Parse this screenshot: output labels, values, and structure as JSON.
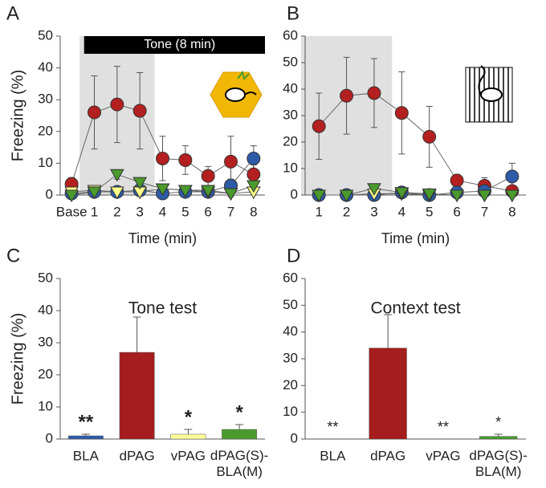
{
  "chart_data": [
    {
      "type": "line",
      "panel": "A",
      "x_label": "Time (min)",
      "y_label": "Freezing (%)",
      "annotation": "Tone (8 min)",
      "categories": [
        "Base",
        "1",
        "2",
        "3",
        "4",
        "5",
        "6",
        "7",
        "8"
      ],
      "ylim": [
        0,
        50
      ],
      "yticks": [
        0,
        10,
        20,
        30,
        40,
        50
      ],
      "series": [
        {
          "color": "#b3201f",
          "marker": "circle",
          "values": [
            3.5,
            26,
            28.5,
            26.5,
            11.5,
            11,
            6,
            10.5,
            6.5
          ],
          "errors": [
            2,
            11.5,
            12,
            12,
            7,
            4.5,
            3,
            8,
            3
          ]
        },
        {
          "color": "#2e5ba8",
          "marker": "circle",
          "values": [
            0.5,
            1,
            1,
            1.5,
            0.5,
            1,
            1,
            3,
            11.5
          ],
          "errors": [
            0.5,
            1,
            1,
            1,
            0.5,
            1,
            1,
            2,
            4
          ]
        },
        {
          "color": "#ffff88",
          "marker": "triangle",
          "values": [
            1,
            1.5,
            1,
            1,
            2,
            1.5,
            1,
            0.5,
            1
          ],
          "errors": [
            0.5,
            1,
            0.5,
            0.5,
            1,
            0.5,
            0.5,
            0.5,
            0.5
          ]
        },
        {
          "color": "#4a9a2c",
          "marker": "triangle",
          "values": [
            0,
            1,
            6.5,
            4,
            2,
            1.5,
            1.5,
            0.5,
            3
          ],
          "errors": [
            0.5,
            1,
            1.5,
            1,
            1,
            1,
            1,
            1,
            1
          ]
        }
      ]
    },
    {
      "type": "line",
      "panel": "B",
      "x_label": "Time (min)",
      "categories": [
        "1",
        "2",
        "3",
        "4",
        "5",
        "6",
        "7",
        "8"
      ],
      "ylim": [
        0,
        60
      ],
      "yticks": [
        0,
        10,
        20,
        30,
        40,
        50,
        60
      ],
      "series": [
        {
          "color": "#b3201f",
          "marker": "circle",
          "values": [
            26,
            37.5,
            38.5,
            31,
            22,
            5.5,
            3.5,
            1.5
          ],
          "errors": [
            12.5,
            14.5,
            13,
            15.5,
            11.5,
            2,
            3,
            1
          ]
        },
        {
          "color": "#2e5ba8",
          "marker": "circle",
          "values": [
            0,
            0,
            0,
            1,
            0,
            1,
            1.5,
            7
          ],
          "errors": [
            0,
            0,
            0,
            0.5,
            0,
            0.5,
            1,
            5
          ]
        },
        {
          "color": "#ffff88",
          "marker": "triangle",
          "values": [
            0,
            0,
            0.5,
            0.5,
            0,
            0,
            0,
            0
          ],
          "errors": [
            0,
            0,
            0.5,
            0.5,
            0,
            0,
            0,
            0
          ]
        },
        {
          "color": "#4a9a2c",
          "marker": "triangle",
          "values": [
            0,
            0,
            2.5,
            1,
            0.5,
            0,
            0,
            0
          ],
          "errors": [
            0,
            0,
            1,
            0.5,
            0.5,
            0,
            0,
            0
          ]
        }
      ]
    },
    {
      "type": "bar",
      "panel": "C",
      "title": "Tone test",
      "y_label": "Freezing (%)",
      "categories": [
        "BLA",
        "dPAG",
        "vPAG",
        "dPAG(S)-BLA(M)"
      ],
      "values": [
        1,
        27,
        1.5,
        3
      ],
      "errors": [
        0.5,
        11,
        1.5,
        1.5
      ],
      "significance": [
        "**",
        null,
        "*",
        "*"
      ],
      "colors": [
        "#2e5ba8",
        "#a51d1d",
        "#ffff99",
        "#4a9a2c"
      ],
      "ylim": [
        0,
        50
      ],
      "yticks": [
        0,
        10,
        20,
        30,
        40,
        50
      ]
    },
    {
      "type": "bar",
      "panel": "D",
      "title": "Context test",
      "categories": [
        "BLA",
        "dPAG",
        "vPAG",
        "dPAG(S)-BLA(M)"
      ],
      "values": [
        0,
        34,
        0,
        1
      ],
      "errors": [
        0,
        12.5,
        0,
        0.8
      ],
      "significance": [
        "**",
        null,
        "**",
        "*"
      ],
      "colors": [
        "#2e5ba8",
        "#a51d1d",
        "#ffff99",
        "#4a9a2c"
      ],
      "ylim": [
        0,
        60
      ],
      "yticks": [
        0,
        10,
        20,
        30,
        40,
        50,
        60
      ]
    }
  ]
}
